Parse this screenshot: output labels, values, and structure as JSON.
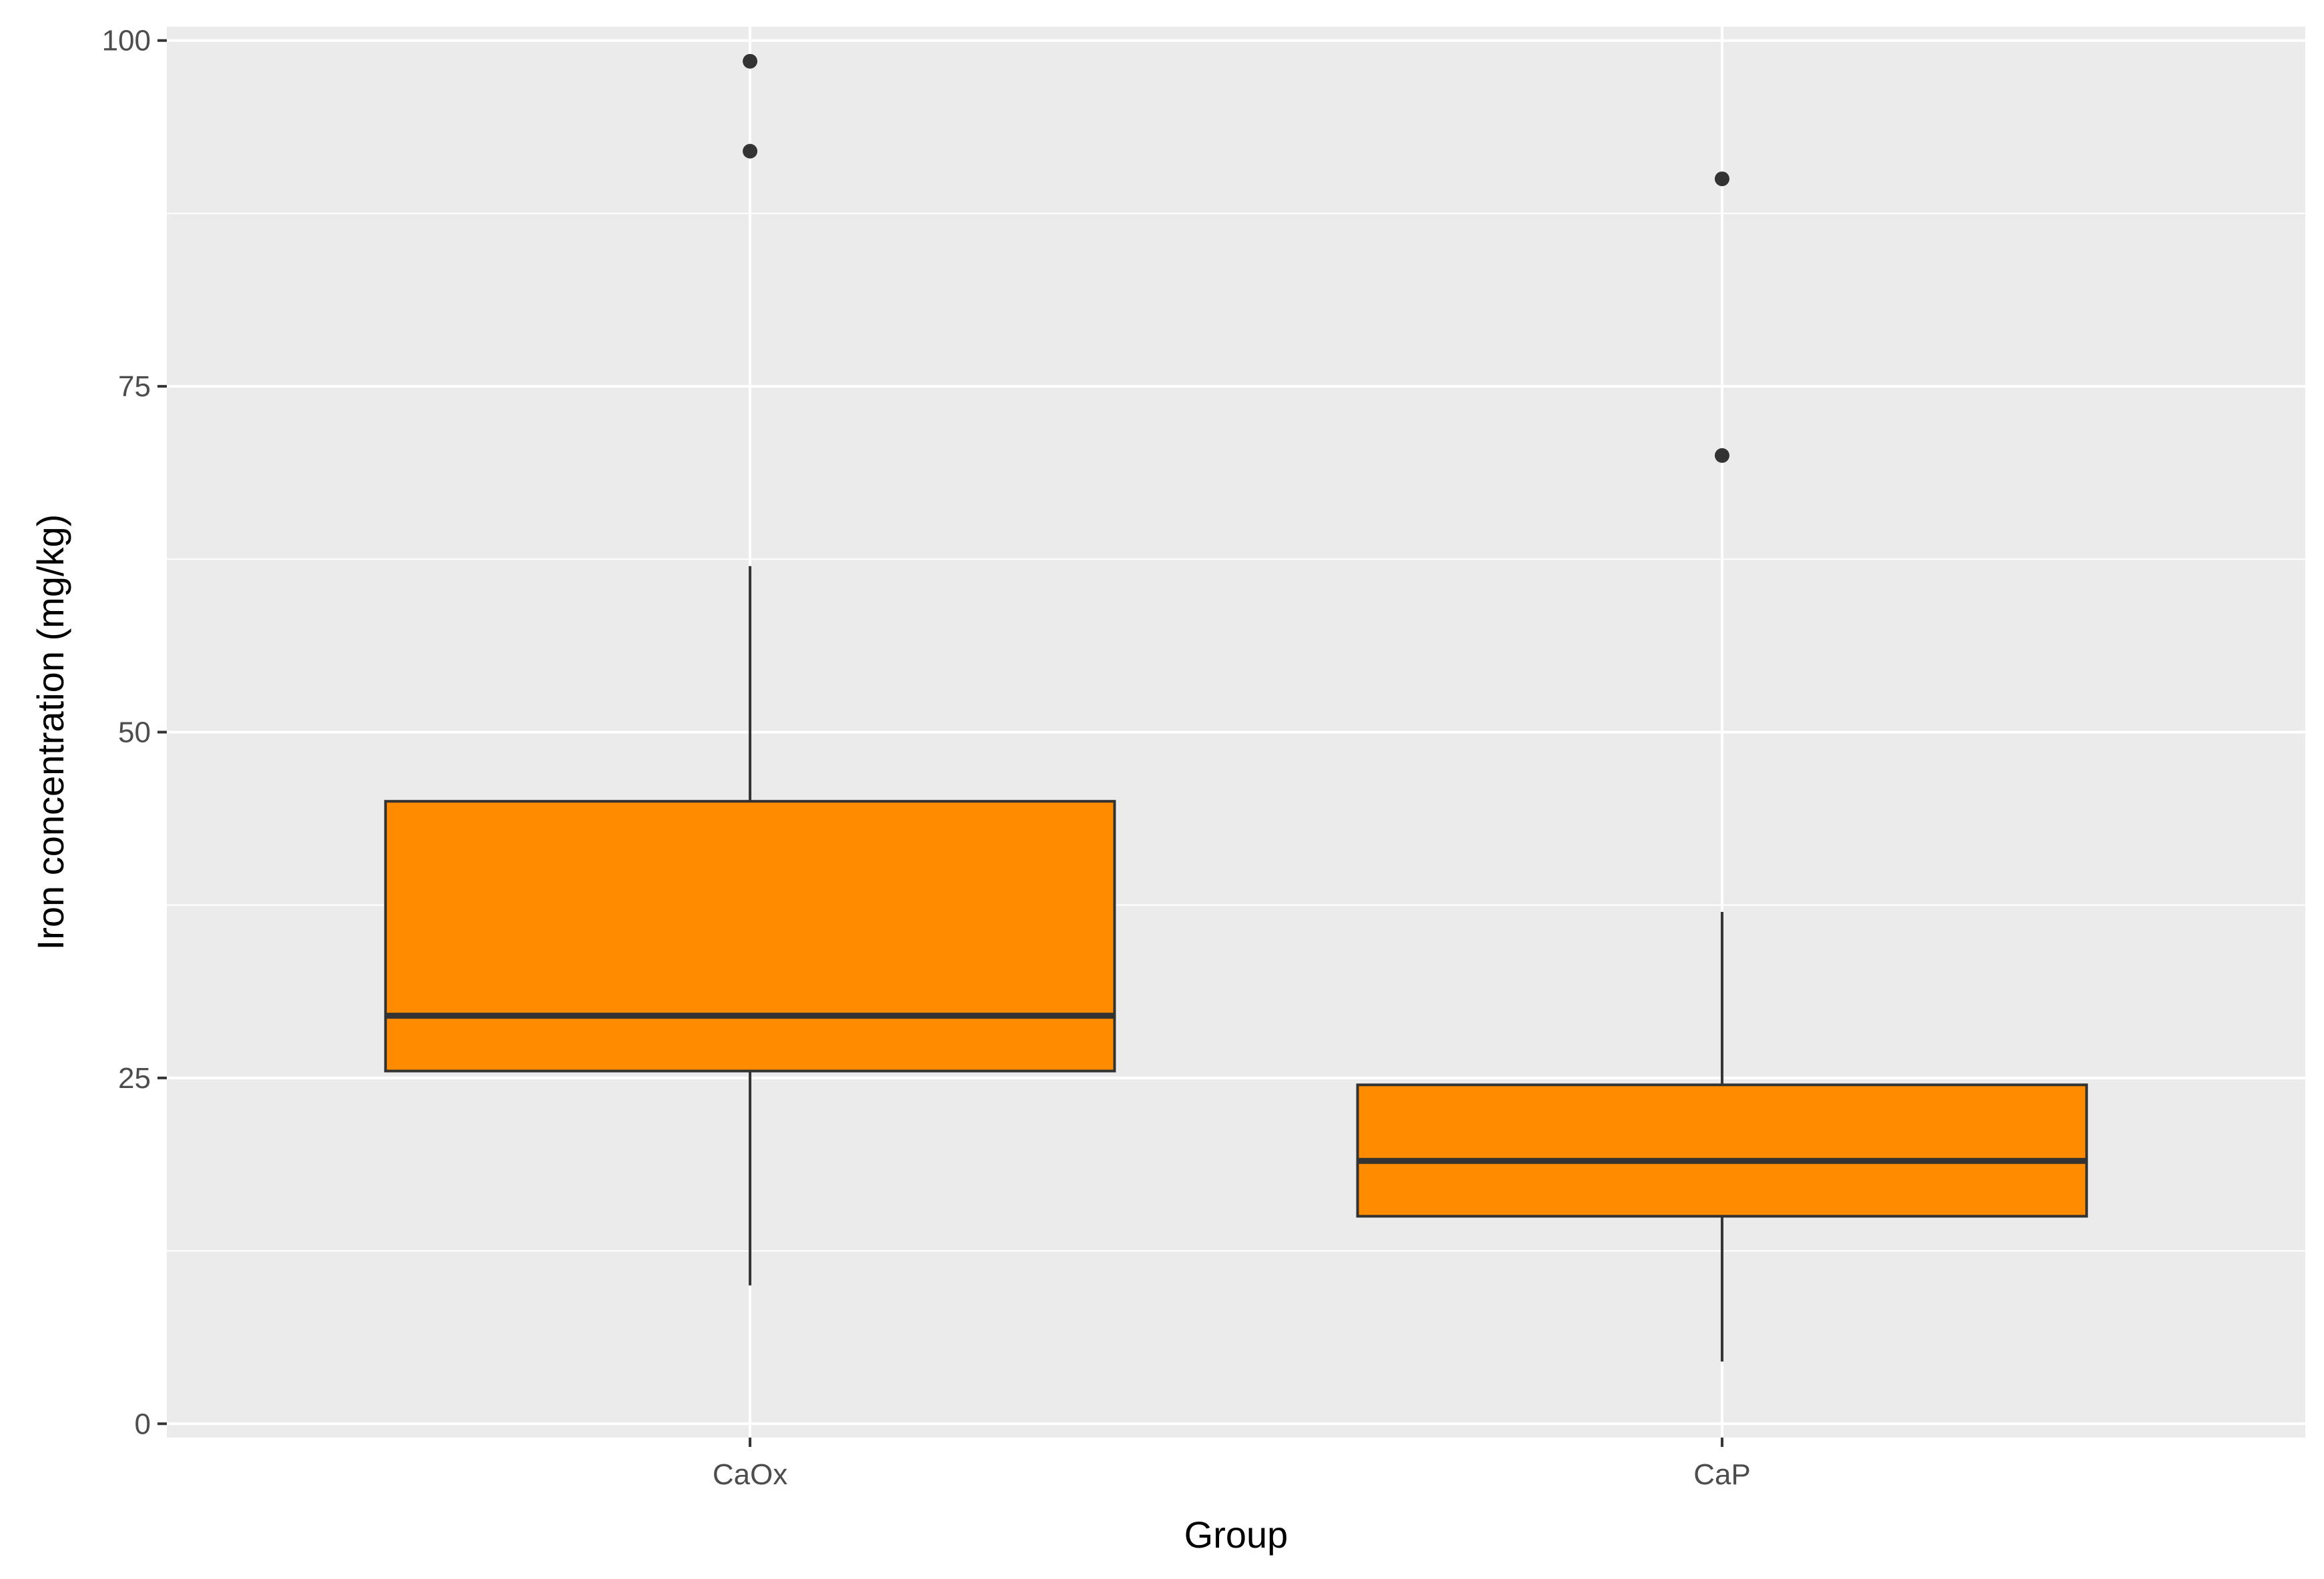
{
  "chart_data": {
    "type": "box",
    "title": "",
    "xlabel": "Group",
    "ylabel": "Iron concentration (mg/kg)",
    "categories": [
      "CaOx",
      "CaP"
    ],
    "ylim": [
      -1,
      101
    ],
    "y_ticks": [
      0,
      25,
      50,
      75,
      100
    ],
    "y_tick_labels": [
      "0",
      "25",
      "50",
      "75",
      "100"
    ],
    "grid": true,
    "legend": "none",
    "fill_color": "#FF8C00",
    "boxes": [
      {
        "category": "CaOx",
        "whisker_low": 10,
        "q1": 25.5,
        "median": 29.5,
        "q3": 45,
        "whisker_high": 62,
        "outliers": [
          92,
          98.5
        ]
      },
      {
        "category": "CaP",
        "whisker_low": 4.5,
        "q1": 15,
        "median": 19,
        "q3": 24.5,
        "whisker_high": 37,
        "outliers": [
          70,
          90
        ]
      }
    ]
  },
  "colors": {
    "panel_background": "#EBEBEB",
    "grid_line": "#FFFFFF",
    "box_outline": "#333333",
    "tick_label": "#4D4D4D",
    "axis_title": "#000000"
  }
}
